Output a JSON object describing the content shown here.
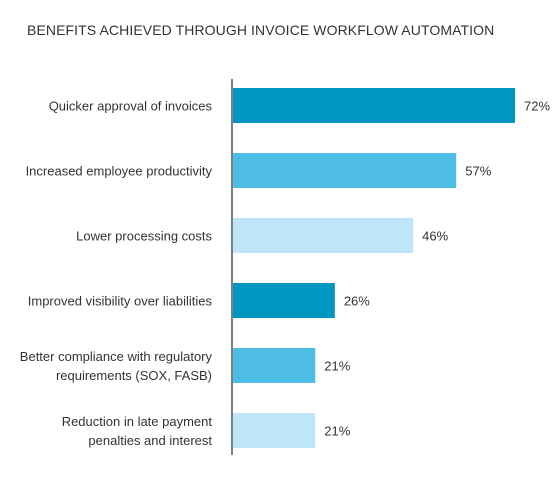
{
  "chart_data": {
    "type": "bar",
    "orientation": "horizontal",
    "title": "BENEFITS ACHIEVED THROUGH INVOICE WORKFLOW AUTOMATION",
    "xlabel": "",
    "ylabel": "",
    "grid": false,
    "legend": "none",
    "xlim": [
      0,
      100
    ],
    "categories": [
      [
        "Quicker approval of invoices"
      ],
      [
        "Increased employee productivity"
      ],
      [
        "Lower processing costs"
      ],
      [
        "Improved visibility over liabilities"
      ],
      [
        "Better compliance with regulatory",
        "requirements (SOX, FASB)"
      ],
      [
        "Reduction in late payment",
        "penalties and interest"
      ]
    ],
    "values": [
      72,
      57,
      46,
      26,
      21,
      21
    ],
    "value_labels": [
      "72%",
      "57%",
      "46%",
      "26%",
      "21%",
      "21%"
    ],
    "bar_colors": [
      "#0096c1",
      "#4dbde6",
      "#bfe6f8",
      "#0096c1",
      "#4dbde6",
      "#bfe6f8"
    ],
    "axis_color": "#555555"
  }
}
